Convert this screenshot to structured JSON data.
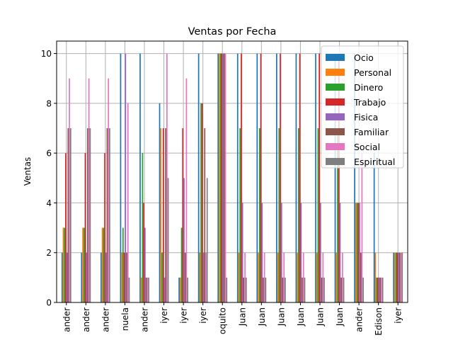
{
  "chart_data": {
    "type": "bar",
    "title": "Ventas por Fecha",
    "xlabel": "",
    "ylabel": "Ventas",
    "ylim": [
      0,
      10.5
    ],
    "yticks": [
      0,
      2,
      4,
      6,
      8,
      10
    ],
    "grid": true,
    "legend_position": "top-right",
    "categories": [
      "ander",
      "ander",
      "ander",
      "nuela",
      "ander",
      "iyer",
      "iyer",
      "iyer",
      "oquito",
      "Juan",
      "Juan",
      "Juan",
      "Juan",
      "Juan",
      "Juan",
      "ander",
      "Edison",
      "iyer"
    ],
    "series": [
      {
        "name": "Ocio",
        "color": "#1f77b4",
        "values": [
          2,
          2,
          2,
          10,
          10,
          8,
          1,
          10,
          10,
          10,
          10,
          10,
          10,
          10,
          10,
          10,
          6,
          2
        ]
      },
      {
        "name": "Personal",
        "color": "#ff7f0e",
        "values": [
          3,
          3,
          3,
          2,
          1,
          7,
          1,
          2,
          10,
          2,
          2,
          2,
          2,
          2,
          2,
          4,
          2,
          2
        ]
      },
      {
        "name": "Dinero",
        "color": "#2ca02c",
        "values": [
          3,
          3,
          3,
          3,
          6,
          2,
          3,
          8,
          10,
          7,
          7,
          7,
          7,
          7,
          7,
          4,
          1,
          2
        ]
      },
      {
        "name": "Trabajo",
        "color": "#d62728",
        "values": [
          6,
          6,
          6,
          2,
          4,
          7,
          7,
          8,
          10,
          10,
          10,
          10,
          10,
          10,
          10,
          4,
          1,
          2
        ]
      },
      {
        "name": "Fisica",
        "color": "#9467bd",
        "values": [
          2,
          2,
          2,
          10,
          3,
          1,
          5,
          2,
          10,
          4,
          4,
          4,
          4,
          4,
          4,
          4,
          1,
          2
        ]
      },
      {
        "name": "Familiar",
        "color": "#8c564b",
        "values": [
          7,
          7,
          7,
          2,
          1,
          7,
          2,
          7,
          10,
          1,
          1,
          1,
          1,
          1,
          1,
          2,
          1,
          2
        ]
      },
      {
        "name": "Social",
        "color": "#e377c2",
        "values": [
          9,
          9,
          9,
          8,
          1,
          10,
          9,
          2,
          10,
          2,
          2,
          2,
          2,
          2,
          2,
          6,
          1,
          2
        ]
      },
      {
        "name": "Espiritual",
        "color": "#7f7f7f",
        "values": [
          7,
          7,
          7,
          1,
          1,
          5,
          1,
          5,
          1,
          1,
          1,
          1,
          1,
          1,
          1,
          1,
          1,
          2
        ]
      }
    ]
  }
}
